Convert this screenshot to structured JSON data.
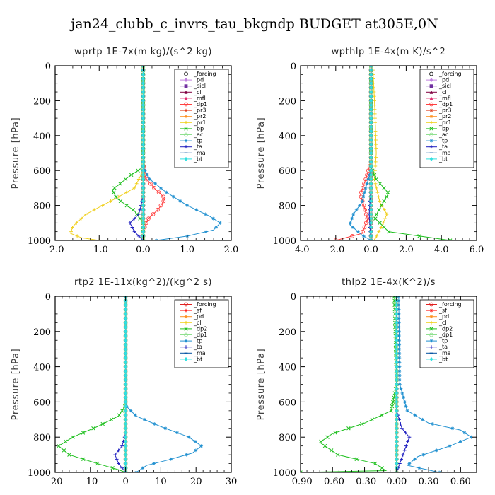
{
  "title": "jan24_clubb_c_invrs_tau_bkgndp  BUDGET at305E,0N",
  "chart_data": [
    {
      "type": "line",
      "title": "wprtp   1E-7x(m kg)/(s^2 kg)",
      "ylabel": "Pressure [hPa]",
      "xlim": [
        -2.0,
        2.0
      ],
      "ylim": [
        1000,
        0
      ],
      "xticks": [
        -2.0,
        -1.0,
        0.0,
        1.0,
        2.0
      ],
      "xtick_labels": [
        "-2.0",
        "-1.0",
        "0.0",
        "1.0",
        "2.0"
      ],
      "yticks": [
        0,
        200,
        400,
        600,
        800,
        1000
      ],
      "ytick_labels": [
        "0",
        "200",
        "400",
        "600",
        "800",
        "1000"
      ],
      "legend_position": "top-right",
      "legend": [
        "_forcing",
        "_pd",
        "_sicl",
        "_cl",
        "_mfl",
        "_dp1",
        "_pr3",
        "_pr2",
        "_pr1",
        "_bp",
        "_ac",
        "_tp",
        "_ta",
        "_ma",
        "_bt"
      ],
      "series": [
        {
          "name": "_forcing",
          "color": "#000000",
          "marker": "circle",
          "x": [
            0,
            0,
            0,
            0,
            0,
            0,
            0
          ],
          "y": [
            0,
            200,
            400,
            600,
            800,
            900,
            1000
          ]
        },
        {
          "name": "_pd",
          "color": "#c080e0",
          "marker": "diamond",
          "x": [
            0,
            0,
            0
          ],
          "y": [
            0,
            500,
            1000
          ]
        },
        {
          "name": "_sicl",
          "color": "#7030a0",
          "marker": "square",
          "x": [
            0,
            0,
            0
          ],
          "y": [
            0,
            500,
            1000
          ]
        },
        {
          "name": "_cl",
          "color": "#800040",
          "marker": "tri",
          "x": [
            0,
            0,
            0
          ],
          "y": [
            0,
            500,
            1000
          ]
        },
        {
          "name": "_mfl",
          "color": "#e03070",
          "marker": "tri",
          "x": [
            0,
            0,
            0
          ],
          "y": [
            0,
            500,
            1000
          ]
        },
        {
          "name": "_dp1",
          "color": "#ff4040",
          "marker": "circle",
          "x": [
            0,
            0,
            0.05,
            0.25,
            0.5,
            0.35,
            0.1,
            0,
            0
          ],
          "y": [
            0,
            550,
            640,
            700,
            760,
            820,
            880,
            950,
            1000
          ]
        },
        {
          "name": "_pr3",
          "color": "#e04020",
          "marker": "star",
          "x": [
            0,
            0,
            0
          ],
          "y": [
            0,
            500,
            1000
          ]
        },
        {
          "name": "_pr2",
          "color": "#ff9020",
          "marker": "star",
          "x": [
            0,
            0,
            0
          ],
          "y": [
            0,
            500,
            1000
          ]
        },
        {
          "name": "_pr1",
          "color": "#f0d020",
          "marker": "plus",
          "x": [
            0,
            0,
            -0.2,
            -0.7,
            -1.3,
            -1.6,
            -1.65,
            -1.4,
            -1.0
          ],
          "y": [
            0,
            600,
            700,
            770,
            850,
            920,
            960,
            985,
            1000
          ]
        },
        {
          "name": "_bp",
          "color": "#20c020",
          "marker": "cross",
          "x": [
            0,
            0,
            -0.3,
            -0.7,
            -0.6,
            -0.2,
            0,
            0
          ],
          "y": [
            0,
            580,
            630,
            710,
            760,
            830,
            900,
            1000
          ]
        },
        {
          "name": "_ac",
          "color": "#90e090",
          "marker": "circle",
          "x": [
            0,
            0,
            0
          ],
          "y": [
            0,
            500,
            1000
          ]
        },
        {
          "name": "_tp",
          "color": "#2090d0",
          "marker": "star",
          "x": [
            0,
            0,
            0.15,
            0.5,
            1.0,
            1.5,
            1.75,
            1.6,
            1.0,
            0.3
          ],
          "y": [
            0,
            580,
            650,
            720,
            800,
            860,
            900,
            940,
            975,
            1000
          ]
        },
        {
          "name": "_ta",
          "color": "#2020c0",
          "marker": "plus",
          "x": [
            0,
            0,
            -0.1,
            -0.3,
            -0.2,
            0
          ],
          "y": [
            0,
            750,
            850,
            900,
            950,
            1000
          ]
        },
        {
          "name": "_ma",
          "color": "#0050a0",
          "marker": "dash",
          "x": [
            0,
            0,
            0
          ],
          "y": [
            0,
            500,
            1000
          ]
        },
        {
          "name": "_bt",
          "color": "#30e0e0",
          "marker": "diamond",
          "x": [
            0,
            0,
            0
          ],
          "y": [
            0,
            500,
            1000
          ]
        }
      ]
    },
    {
      "type": "line",
      "title": "wpthlp   1E-4x(m K)/s^2",
      "ylabel": "Pressure [hPa]",
      "xlim": [
        -4.0,
        6.0
      ],
      "ylim": [
        1000,
        0
      ],
      "xticks": [
        -4.0,
        -2.0,
        0.0,
        2.0,
        4.0,
        6.0
      ],
      "xtick_labels": [
        "-4.0",
        "-2.0",
        "0.0",
        "2.0",
        "4.0",
        "6.0"
      ],
      "yticks": [
        0,
        200,
        400,
        600,
        800,
        1000
      ],
      "ytick_labels": [
        "0",
        "200",
        "400",
        "600",
        "800",
        "1000"
      ],
      "legend_position": "top-right",
      "legend": [
        "_forcing",
        "_pd",
        "_sicl",
        "_cl",
        "_mfl",
        "_dp1",
        "_pr3",
        "_pr2",
        "_pr1",
        "_bp",
        "_ac",
        "_tp",
        "_ta",
        "_ma",
        "_bt"
      ],
      "series": [
        {
          "name": "_forcing",
          "color": "#000000",
          "marker": "circle",
          "x": [
            0,
            0,
            0
          ],
          "y": [
            0,
            500,
            1000
          ]
        },
        {
          "name": "_pd",
          "color": "#c080e0",
          "marker": "diamond",
          "x": [
            0,
            0,
            0
          ],
          "y": [
            0,
            500,
            1000
          ]
        },
        {
          "name": "_sicl",
          "color": "#7030a0",
          "marker": "square",
          "x": [
            0,
            0,
            0
          ],
          "y": [
            0,
            500,
            1000
          ]
        },
        {
          "name": "_cl",
          "color": "#800040",
          "marker": "tri",
          "x": [
            0,
            0,
            0
          ],
          "y": [
            0,
            500,
            1000
          ]
        },
        {
          "name": "_mfl",
          "color": "#e03070",
          "marker": "tri",
          "x": [
            0,
            0,
            0
          ],
          "y": [
            0,
            500,
            1000
          ]
        },
        {
          "name": "_dp1",
          "color": "#ff4040",
          "marker": "circle",
          "x": [
            0,
            0,
            -0.3,
            -0.6,
            -0.4,
            -0.2,
            -0.5,
            -2.0
          ],
          "y": [
            0,
            550,
            650,
            740,
            800,
            880,
            960,
            1000
          ]
        },
        {
          "name": "_pr3",
          "color": "#e04020",
          "marker": "star",
          "x": [
            0,
            0,
            0
          ],
          "y": [
            0,
            500,
            1000
          ]
        },
        {
          "name": "_pr2",
          "color": "#ff9020",
          "marker": "star",
          "x": [
            0,
            0,
            0
          ],
          "y": [
            0,
            500,
            1000
          ]
        },
        {
          "name": "_pr1",
          "color": "#f0d020",
          "marker": "plus",
          "x": [
            0.1,
            0.2,
            0.3,
            0.2,
            0.5,
            0.9,
            0.7,
            0.2
          ],
          "y": [
            0,
            200,
            500,
            650,
            780,
            850,
            900,
            1000
          ]
        },
        {
          "name": "_bp",
          "color": "#20c020",
          "marker": "cross",
          "x": [
            0,
            0,
            0.3,
            1.0,
            0.6,
            0.2,
            1.0,
            4.5
          ],
          "y": [
            0,
            580,
            650,
            730,
            800,
            870,
            950,
            1000
          ]
        },
        {
          "name": "_ac",
          "color": "#90e090",
          "marker": "circle",
          "x": [
            0,
            0,
            0
          ],
          "y": [
            0,
            500,
            1000
          ]
        },
        {
          "name": "_tp",
          "color": "#2090d0",
          "marker": "star",
          "x": [
            0,
            0,
            -0.3,
            -0.5,
            -1.0,
            -1.2,
            -0.5,
            0
          ],
          "y": [
            0,
            600,
            700,
            780,
            850,
            910,
            970,
            1000
          ]
        },
        {
          "name": "_ta",
          "color": "#2020c0",
          "marker": "plus",
          "x": [
            0,
            0,
            -0.1,
            0
          ],
          "y": [
            0,
            700,
            850,
            1000
          ]
        },
        {
          "name": "_ma",
          "color": "#0050a0",
          "marker": "dash",
          "x": [
            0,
            0,
            0
          ],
          "y": [
            0,
            500,
            1000
          ]
        },
        {
          "name": "_bt",
          "color": "#30e0e0",
          "marker": "diamond",
          "x": [
            0,
            0,
            0
          ],
          "y": [
            0,
            500,
            1000
          ]
        }
      ]
    },
    {
      "type": "line",
      "title": "rtp2   1E-11x(kg^2)/(kg^2 s)",
      "ylabel": "Pressure [hPa]",
      "xlim": [
        -20,
        30
      ],
      "ylim": [
        1000,
        0
      ],
      "xticks": [
        -20,
        -10,
        0,
        10,
        20,
        30
      ],
      "xtick_labels": [
        "-20",
        "-10",
        "0",
        "10",
        "20",
        "30"
      ],
      "yticks": [
        0,
        200,
        400,
        600,
        800,
        1000
      ],
      "ytick_labels": [
        "0",
        "200",
        "400",
        "600",
        "800",
        "1000"
      ],
      "legend_position": "top-right",
      "legend": [
        "_forcing",
        "_sf",
        "_pd",
        "_cl",
        "_dp2",
        "_dp1",
        "_tp",
        "_ta",
        "_ma",
        "_bt"
      ],
      "series": [
        {
          "name": "_forcing",
          "color": "#e02020",
          "marker": "circle",
          "x": [
            0,
            0,
            0,
            0,
            0,
            0,
            0
          ],
          "y": [
            0,
            200,
            400,
            600,
            800,
            900,
            1000
          ]
        },
        {
          "name": "_sf",
          "color": "#ff2020",
          "marker": "star",
          "x": [
            0,
            0,
            0
          ],
          "y": [
            0,
            500,
            1000
          ]
        },
        {
          "name": "_pd",
          "color": "#ff9020",
          "marker": "star",
          "x": [
            0,
            0,
            0
          ],
          "y": [
            0,
            500,
            1000
          ]
        },
        {
          "name": "_cl",
          "color": "#f0d020",
          "marker": "plus",
          "x": [
            0,
            0,
            0
          ],
          "y": [
            0,
            500,
            1000
          ]
        },
        {
          "name": "_dp2",
          "color": "#20c020",
          "marker": "cross",
          "x": [
            0,
            0,
            -2,
            -8,
            -15,
            -19,
            -16,
            -8,
            -2,
            0
          ],
          "y": [
            0,
            620,
            680,
            740,
            800,
            850,
            900,
            950,
            985,
            1000
          ]
        },
        {
          "name": "_dp1",
          "color": "#90e090",
          "marker": "circle",
          "x": [
            0,
            0,
            0
          ],
          "y": [
            0,
            500,
            1000
          ]
        },
        {
          "name": "_tp",
          "color": "#2090d0",
          "marker": "star",
          "x": [
            0,
            0,
            3,
            10,
            18,
            21.5,
            19,
            12,
            6,
            3
          ],
          "y": [
            0,
            620,
            680,
            740,
            800,
            850,
            890,
            930,
            960,
            1000
          ]
        },
        {
          "name": "_ta",
          "color": "#2020c0",
          "marker": "plus",
          "x": [
            0,
            0,
            -1,
            -3,
            -2,
            0
          ],
          "y": [
            0,
            780,
            850,
            900,
            950,
            1000
          ]
        },
        {
          "name": "_ma",
          "color": "#0050a0",
          "marker": "dash",
          "x": [
            0,
            0,
            0
          ],
          "y": [
            0,
            500,
            1000
          ]
        },
        {
          "name": "_bt",
          "color": "#30e0e0",
          "marker": "diamond",
          "x": [
            0,
            0,
            0
          ],
          "y": [
            0,
            500,
            1000
          ]
        }
      ]
    },
    {
      "type": "line",
      "title": "thlp2   1E-4x(K^2)/s",
      "ylabel": "Pressure [hPa]",
      "xlim": [
        -0.9,
        0.75
      ],
      "ylim": [
        1000,
        0
      ],
      "xticks": [
        -0.9,
        -0.6,
        -0.3,
        0.0,
        0.3,
        0.6
      ],
      "xtick_labels": [
        "-0.90",
        "-0.60",
        "-0.30",
        "0.00",
        "0.30",
        "0.60"
      ],
      "yticks": [
        0,
        200,
        400,
        600,
        800,
        1000
      ],
      "ytick_labels": [
        "0",
        "200",
        "400",
        "600",
        "800",
        "1000"
      ],
      "legend_position": "top-right",
      "legend": [
        "_forcing",
        "_sf",
        "_pd",
        "_cl",
        "_dp2",
        "_dp1",
        "_tp",
        "_ta",
        "_ma",
        "_bt"
      ],
      "series": [
        {
          "name": "_forcing",
          "color": "#e02020",
          "marker": "circle",
          "x": [
            0,
            0,
            0,
            0,
            0,
            0,
            0
          ],
          "y": [
            0,
            200,
            400,
            600,
            800,
            900,
            1000
          ]
        },
        {
          "name": "_sf",
          "color": "#ff2020",
          "marker": "star",
          "x": [
            0,
            0,
            0
          ],
          "y": [
            0,
            500,
            1000
          ]
        },
        {
          "name": "_pd",
          "color": "#ff9020",
          "marker": "star",
          "x": [
            0,
            0,
            0
          ],
          "y": [
            0,
            500,
            1000
          ]
        },
        {
          "name": "_cl",
          "color": "#f0d020",
          "marker": "plus",
          "x": [
            0,
            0,
            0
          ],
          "y": [
            0,
            500,
            1000
          ]
        },
        {
          "name": "_dp2",
          "color": "#20c020",
          "marker": "cross",
          "x": [
            -0.02,
            0,
            -0.05,
            -0.3,
            -0.6,
            -0.72,
            -0.55,
            -0.2,
            -0.1,
            -0.9
          ],
          "y": [
            0,
            500,
            650,
            720,
            780,
            830,
            900,
            950,
            990,
            1000
          ]
        },
        {
          "name": "_dp1",
          "color": "#90e090",
          "marker": "circle",
          "x": [
            0,
            0,
            0
          ],
          "y": [
            0,
            500,
            1000
          ]
        },
        {
          "name": "_tp",
          "color": "#2090d0",
          "marker": "star",
          "x": [
            0.02,
            0.03,
            0.1,
            0.3,
            0.6,
            0.7,
            0.5,
            0.2,
            0.1,
            0.4
          ],
          "y": [
            0,
            500,
            650,
            720,
            760,
            800,
            850,
            910,
            960,
            1000
          ]
        },
        {
          "name": "_ta",
          "color": "#2020c0",
          "marker": "plus",
          "x": [
            0,
            0,
            0.05,
            0.12,
            0.06,
            0
          ],
          "y": [
            0,
            650,
            750,
            800,
            900,
            1000
          ]
        },
        {
          "name": "_ma",
          "color": "#0050a0",
          "marker": "dash",
          "x": [
            0,
            0,
            0
          ],
          "y": [
            0,
            500,
            1000
          ]
        },
        {
          "name": "_bt",
          "color": "#30e0e0",
          "marker": "diamond",
          "x": [
            0,
            0,
            0
          ],
          "y": [
            0,
            500,
            1000
          ]
        }
      ]
    }
  ]
}
